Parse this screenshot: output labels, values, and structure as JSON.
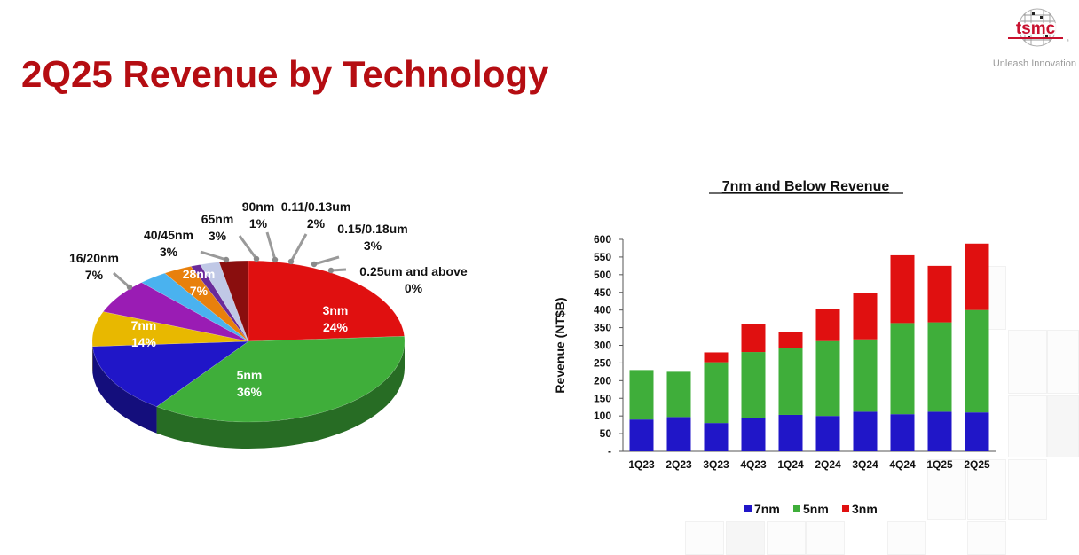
{
  "page": {
    "title": "2Q25 Revenue by Technology",
    "logo_text": "tsmc",
    "tagline": "Unleash Innovation"
  },
  "colors": {
    "title_red": "#b50d12",
    "n3": "#e01010",
    "n5": "#3fae3a",
    "n7": "#2016c8",
    "n16_20": "#e8b800",
    "n28": "#9a1cb4",
    "n40_45": "#4ab2ef",
    "n65": "#e8800c",
    "n90": "#6a2a9a",
    "n011_013": "#c0c8e6",
    "n015_018": "#8a0e0e"
  },
  "chart_data": [
    {
      "type": "pie",
      "title": "",
      "slices": [
        {
          "label": "3nm",
          "value": 24,
          "value_label": "24%",
          "color": "#e01010",
          "label_inside": true
        },
        {
          "label": "5nm",
          "value": 36,
          "value_label": "36%",
          "color": "#3fae3a",
          "label_inside": true
        },
        {
          "label": "7nm",
          "value": 14,
          "value_label": "14%",
          "color": "#2016c8",
          "label_inside": true
        },
        {
          "label": "16/20nm",
          "value": 7,
          "value_label": "7%",
          "color": "#e8b800",
          "label_inside": false
        },
        {
          "label": "28nm",
          "value": 7,
          "value_label": "7%",
          "color": "#9a1cb4",
          "label_inside": true
        },
        {
          "label": "40/45nm",
          "value": 3,
          "value_label": "3%",
          "color": "#4ab2ef",
          "label_inside": false
        },
        {
          "label": "65nm",
          "value": 3,
          "value_label": "3%",
          "color": "#e8800c",
          "label_inside": false
        },
        {
          "label": "90nm",
          "value": 1,
          "value_label": "1%",
          "color": "#6a2a9a",
          "label_inside": false
        },
        {
          "label": "0.11/0.13um",
          "value": 2,
          "value_label": "2%",
          "color": "#c0c8e6",
          "label_inside": false
        },
        {
          "label": "0.15/0.18um",
          "value": 3,
          "value_label": "3%",
          "color": "#8a0e0e",
          "label_inside": false
        },
        {
          "label": "0.25um and above",
          "value": 0,
          "value_label": "0%",
          "color": "#b8b8b8",
          "label_inside": false
        }
      ]
    },
    {
      "type": "bar",
      "stacked": true,
      "title": "7nm and Below Revenue",
      "xlabel": "",
      "ylabel": "Revenue (NT$B)",
      "ylim": [
        0,
        600
      ],
      "yticks": [
        0,
        50,
        100,
        150,
        200,
        250,
        300,
        350,
        400,
        450,
        500,
        550,
        600
      ],
      "ytick_labels": [
        "-",
        "50",
        "100",
        "150",
        "200",
        "250",
        "300",
        "350",
        "400",
        "450",
        "500",
        "550",
        "600"
      ],
      "categories": [
        "1Q23",
        "2Q23",
        "3Q23",
        "4Q23",
        "1Q24",
        "2Q24",
        "3Q24",
        "4Q24",
        "1Q25",
        "2Q25"
      ],
      "series": [
        {
          "name": "7nm",
          "color": "#2016c8",
          "values": [
            90,
            97,
            80,
            93,
            103,
            100,
            112,
            105,
            112,
            110
          ]
        },
        {
          "name": "5nm",
          "color": "#3fae3a",
          "values": [
            140,
            128,
            172,
            188,
            190,
            212,
            205,
            258,
            253,
            290
          ]
        },
        {
          "name": "3nm",
          "color": "#e01010",
          "values": [
            0,
            0,
            28,
            80,
            45,
            90,
            130,
            192,
            160,
            188
          ]
        }
      ],
      "legend_position": "bottom",
      "grid": false
    }
  ]
}
